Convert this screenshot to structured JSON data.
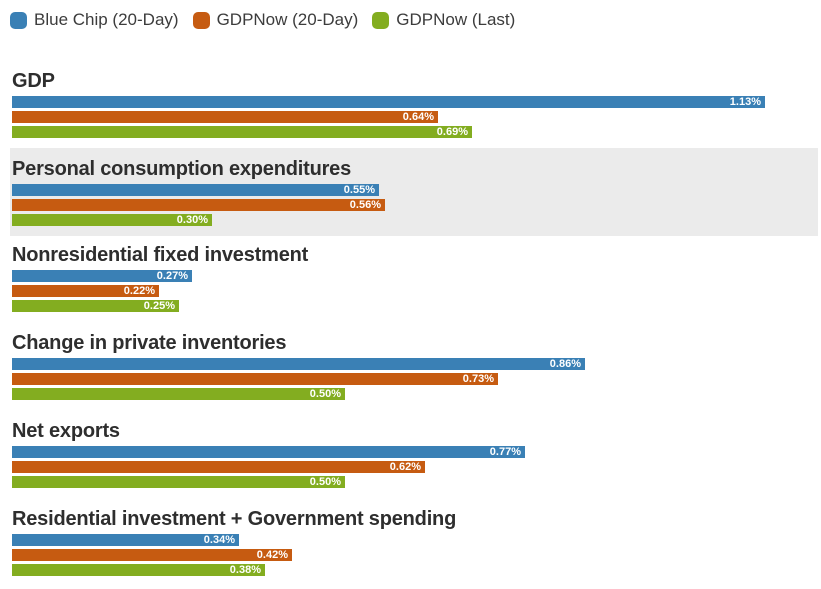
{
  "colors": {
    "series_blue": "#3a80b5",
    "series_orange": "#c65b11",
    "series_green": "#83ad20",
    "highlight_row_bg": "#ebebeb",
    "title_text": "#2e2e2e",
    "legend_text": "#3c3c3c",
    "bar_label_text": "#ffffff",
    "page_bg": "#ffffff"
  },
  "legend": {
    "items": [
      {
        "label": "Blue Chip (20-Day)",
        "color_key": "series_blue"
      },
      {
        "label": "GDPNow (20-Day)",
        "color_key": "series_orange"
      },
      {
        "label": "GDPNow (Last)",
        "color_key": "series_green"
      }
    ]
  },
  "chart_data": {
    "type": "bar",
    "orientation": "horizontal",
    "value_unit": "percent",
    "axis_max": 1.13,
    "grid": false,
    "legend_position": "top-left",
    "highlighted_category": "Personal consumption expenditures",
    "categories": [
      "GDP",
      "Personal consumption expenditures",
      "Nonresidential fixed investment",
      "Change in private inventories",
      "Net exports",
      "Residential investment + Government spending"
    ],
    "series": [
      {
        "name": "Blue Chip (20-Day)",
        "color_key": "series_blue",
        "values": [
          1.13,
          0.55,
          0.27,
          0.86,
          0.77,
          0.34
        ]
      },
      {
        "name": "GDPNow (20-Day)",
        "color_key": "series_orange",
        "values": [
          0.64,
          0.56,
          0.22,
          0.73,
          0.62,
          0.42
        ]
      },
      {
        "name": "GDPNow (Last)",
        "color_key": "series_green",
        "values": [
          0.69,
          0.3,
          0.25,
          0.5,
          0.5,
          0.38
        ]
      }
    ]
  },
  "sections": [
    {
      "title": "GDP",
      "highlighted": false,
      "bars": [
        {
          "series": "Blue Chip (20-Day)",
          "color_key": "series_blue",
          "value": 1.13,
          "label": "1.13%"
        },
        {
          "series": "GDPNow (20-Day)",
          "color_key": "series_orange",
          "value": 0.64,
          "label": "0.64%"
        },
        {
          "series": "GDPNow (Last)",
          "color_key": "series_green",
          "value": 0.69,
          "label": "0.69%"
        }
      ]
    },
    {
      "title": "Personal consumption expenditures",
      "highlighted": true,
      "bars": [
        {
          "series": "Blue Chip (20-Day)",
          "color_key": "series_blue",
          "value": 0.55,
          "label": "0.55%"
        },
        {
          "series": "GDPNow (20-Day)",
          "color_key": "series_orange",
          "value": 0.56,
          "label": "0.56%"
        },
        {
          "series": "GDPNow (Last)",
          "color_key": "series_green",
          "value": 0.3,
          "label": "0.30%"
        }
      ]
    },
    {
      "title": "Nonresidential fixed investment",
      "highlighted": false,
      "bars": [
        {
          "series": "Blue Chip (20-Day)",
          "color_key": "series_blue",
          "value": 0.27,
          "label": "0.27%"
        },
        {
          "series": "GDPNow (20-Day)",
          "color_key": "series_orange",
          "value": 0.22,
          "label": "0.22%"
        },
        {
          "series": "GDPNow (Last)",
          "color_key": "series_green",
          "value": 0.25,
          "label": "0.25%"
        }
      ]
    },
    {
      "title": "Change in private inventories",
      "highlighted": false,
      "bars": [
        {
          "series": "Blue Chip (20-Day)",
          "color_key": "series_blue",
          "value": 0.86,
          "label": "0.86%"
        },
        {
          "series": "GDPNow (20-Day)",
          "color_key": "series_orange",
          "value": 0.73,
          "label": "0.73%"
        },
        {
          "series": "GDPNow (Last)",
          "color_key": "series_green",
          "value": 0.5,
          "label": "0.50%"
        }
      ]
    },
    {
      "title": "Net exports",
      "highlighted": false,
      "bars": [
        {
          "series": "Blue Chip (20-Day)",
          "color_key": "series_blue",
          "value": 0.77,
          "label": "0.77%"
        },
        {
          "series": "GDPNow (20-Day)",
          "color_key": "series_orange",
          "value": 0.62,
          "label": "0.62%"
        },
        {
          "series": "GDPNow (Last)",
          "color_key": "series_green",
          "value": 0.5,
          "label": "0.50%"
        }
      ]
    },
    {
      "title": "Residential investment + Government spending",
      "highlighted": false,
      "bars": [
        {
          "series": "Blue Chip (20-Day)",
          "color_key": "series_blue",
          "value": 0.34,
          "label": "0.34%"
        },
        {
          "series": "GDPNow (20-Day)",
          "color_key": "series_orange",
          "value": 0.42,
          "label": "0.42%"
        },
        {
          "series": "GDPNow (Last)",
          "color_key": "series_green",
          "value": 0.38,
          "label": "0.38%"
        }
      ]
    }
  ]
}
